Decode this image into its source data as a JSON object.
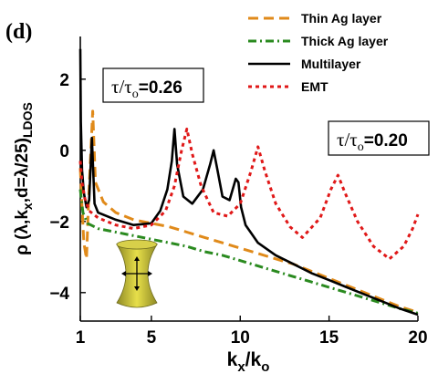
{
  "chart_data": {
    "type": "line",
    "panel_label": "(d)",
    "xlabel": "kx/ko",
    "xlabel_main": "k",
    "xlabel_sub1": "x",
    "xlabel_mid": "/k",
    "xlabel_sub2": "o",
    "ylabel": "ρ (λ,kx,d=λ/25)LDOS",
    "ylabel_main": "ρ (λ,k",
    "ylabel_sub1": "x",
    "ylabel_mid": ",d=λ/25)",
    "ylabel_sub2": "LDOS",
    "xlim": [
      1,
      20
    ],
    "ylim": [
      -4.8,
      3.2
    ],
    "xticks": [
      1,
      5,
      10,
      15,
      20
    ],
    "xtick_labels": [
      "1",
      "5",
      "10",
      "15",
      "20"
    ],
    "yticks": [
      2,
      0,
      -2,
      -4
    ],
    "ytick_labels": [
      "2",
      "0",
      "−2",
      "−4"
    ],
    "legend_position": "top-right",
    "annotations": [
      {
        "id": "multilayer",
        "prefix": "τ/τ",
        "sub": "o",
        "value": "=0.26"
      },
      {
        "id": "emt",
        "prefix": "τ/τ",
        "sub": "o",
        "value": "=0.20"
      }
    ],
    "series": [
      {
        "name": "Thin Ag layer",
        "color": "#e08a1a",
        "dash": "dashed",
        "x": [
          1.0,
          1.1,
          1.2,
          1.35,
          1.45,
          1.55,
          1.7,
          1.85,
          2.3,
          3.0,
          4.0,
          5.0,
          6.0,
          7.0,
          8.0,
          9.0,
          10.0,
          11.0,
          12.0,
          13.0,
          14.0,
          15.0,
          16.0,
          17.0,
          18.0,
          19.0,
          20.0
        ],
        "y": [
          -0.5,
          -1.6,
          -2.6,
          -3.05,
          -1.6,
          -0.5,
          1.1,
          -0.9,
          -1.45,
          -1.75,
          -1.95,
          -2.05,
          -2.15,
          -2.3,
          -2.45,
          -2.6,
          -2.75,
          -2.9,
          -3.05,
          -3.2,
          -3.4,
          -3.6,
          -3.8,
          -4.0,
          -4.2,
          -4.4,
          -4.55
        ]
      },
      {
        "name": "Thick Ag layer",
        "color": "#2a8a1f",
        "dash": "dashdot",
        "x": [
          1.0,
          1.15,
          1.4,
          2.0,
          3.0,
          4.0,
          5.0,
          6.0,
          7.0,
          8.0,
          9.0,
          10.0,
          11.0,
          12.0,
          13.0,
          14.0,
          15.0,
          16.0,
          17.0,
          18.0,
          19.0,
          20.0
        ],
        "y": [
          -1.1,
          -1.75,
          -2.05,
          -2.2,
          -2.3,
          -2.4,
          -2.5,
          -2.6,
          -2.7,
          -2.85,
          -2.95,
          -3.1,
          -3.25,
          -3.4,
          -3.55,
          -3.7,
          -3.85,
          -4.0,
          -4.15,
          -4.3,
          -4.45,
          -4.58
        ]
      },
      {
        "name": "Multilayer",
        "color": "#000000",
        "dash": "solid",
        "x": [
          1.0,
          1.03,
          1.1,
          1.2,
          1.35,
          1.5,
          1.65,
          1.8,
          2.0,
          3.0,
          4.0,
          5.0,
          5.5,
          5.9,
          6.15,
          6.3,
          6.45,
          6.8,
          7.3,
          7.9,
          8.3,
          8.5,
          8.7,
          9.0,
          9.4,
          9.75,
          9.9,
          10.05,
          10.3,
          11.0,
          12.0,
          13.0,
          14.0,
          15.0,
          16.0,
          17.0,
          18.0,
          19.0,
          20.0
        ],
        "y": [
          2.85,
          0.8,
          -0.55,
          -1.2,
          -1.6,
          -1.4,
          0.35,
          -1.5,
          -1.75,
          -1.95,
          -2.1,
          -2.05,
          -1.7,
          -1.1,
          -0.3,
          0.6,
          -0.4,
          -1.3,
          -1.5,
          -1.1,
          -0.4,
          0.0,
          -0.5,
          -1.3,
          -1.4,
          -0.8,
          -0.9,
          -1.6,
          -2.1,
          -2.6,
          -2.95,
          -3.2,
          -3.45,
          -3.65,
          -3.85,
          -4.05,
          -4.25,
          -4.45,
          -4.62
        ]
      },
      {
        "name": "EMT",
        "color": "#e01818",
        "dash": "dotted",
        "x": [
          1.0,
          1.1,
          1.25,
          1.5,
          2.0,
          3.0,
          4.0,
          5.0,
          5.8,
          6.3,
          6.7,
          7.0,
          7.3,
          7.8,
          8.5,
          9.3,
          10.0,
          10.6,
          11.0,
          11.4,
          12.0,
          12.8,
          13.5,
          14.5,
          15.1,
          15.5,
          15.9,
          16.6,
          17.5,
          18.4,
          19.2,
          19.7,
          20.0
        ],
        "y": [
          -0.3,
          -0.9,
          -1.35,
          -1.7,
          -1.9,
          -2.1,
          -2.2,
          -2.1,
          -1.7,
          -1.0,
          0.0,
          0.6,
          -0.1,
          -1.0,
          -1.75,
          -1.85,
          -1.5,
          -0.6,
          0.1,
          -0.6,
          -1.5,
          -2.15,
          -2.45,
          -1.9,
          -1.1,
          -0.7,
          -1.2,
          -2.0,
          -2.7,
          -3.05,
          -2.7,
          -2.2,
          -1.8
        ]
      }
    ]
  }
}
